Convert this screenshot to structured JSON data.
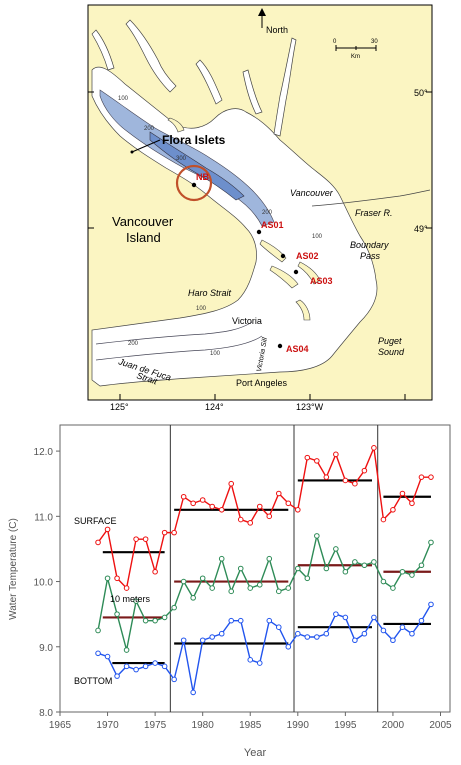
{
  "map": {
    "north_label": "North",
    "scale": {
      "zero": "0",
      "max": "30",
      "unit": "Km"
    },
    "lat_labels": [
      "50°",
      "49°"
    ],
    "lon_labels": [
      "125°",
      "124°",
      "123°W"
    ],
    "place_labels": {
      "flora_islets": "Flora Islets",
      "vancouver_island_1": "Vancouver",
      "vancouver_island_2": "Island",
      "vancouver": "Vancouver",
      "fraser": "Fraser R.",
      "boundary_1": "Boundary",
      "boundary_2": "Pass",
      "haro": "Haro Strait",
      "victoria": "Victoria",
      "victoria_sill": "Victoria Sill",
      "juan_1": "Juan de Fuca",
      "juan_2": "Strait",
      "puget_1": "Puget",
      "puget_2": "Sound",
      "port_angeles": "Port Angeles"
    },
    "stations": [
      "NB",
      "AS01",
      "AS02",
      "AS03",
      "AS04"
    ],
    "depth_labels": [
      "100",
      "200",
      "300",
      "200",
      "100",
      "100",
      "200",
      "100"
    ],
    "colors": {
      "land": "#fbf5c2",
      "water": "#ffffff",
      "deep_water": "#9fb6dc",
      "deepest_water": "#6d8fcc",
      "station": "#cc1111",
      "circle": "#c0502a"
    }
  },
  "chart_data": {
    "type": "line",
    "xlabel": "Year",
    "ylabel": "Water Temperature (C)",
    "xlim": [
      1965,
      2006
    ],
    "ylim": [
      8.0,
      12.4
    ],
    "x_ticks": [
      "1965",
      "1970",
      "1975",
      "1980",
      "1985",
      "1990",
      "1995",
      "2000",
      "2005"
    ],
    "y_ticks": [
      "8.0",
      "9.0",
      "10.0",
      "11.0",
      "12.0"
    ],
    "vertical_lines": [
      1976.6,
      1989.6,
      1998.4
    ],
    "grid": false,
    "series": [
      {
        "name": "SURFACE",
        "color": "#ee1111",
        "x": [
          1969,
          1970,
          1971,
          1972,
          1973,
          1974,
          1975,
          1976,
          1977,
          1978,
          1979,
          1980,
          1981,
          1982,
          1983,
          1984,
          1985,
          1986,
          1987,
          1988,
          1989,
          1990,
          1991,
          1992,
          1993,
          1994,
          1995,
          1996,
          1997,
          1998,
          1999,
          2000,
          2001,
          2002,
          2003,
          2004
        ],
        "values": [
          10.6,
          10.8,
          10.05,
          9.9,
          10.65,
          10.65,
          10.15,
          10.75,
          10.75,
          11.3,
          11.2,
          11.25,
          11.15,
          11.1,
          11.5,
          10.95,
          10.9,
          11.15,
          11.0,
          11.35,
          11.2,
          11.1,
          11.9,
          11.85,
          11.6,
          11.95,
          11.55,
          11.5,
          11.7,
          12.05,
          10.95,
          11.1,
          11.35,
          11.2,
          11.6,
          11.6
        ]
      },
      {
        "name": "10 meters",
        "color": "#2e8b57",
        "x": [
          1969,
          1970,
          1971,
          1972,
          1973,
          1974,
          1975,
          1976,
          1977,
          1978,
          1979,
          1980,
          1981,
          1982,
          1983,
          1984,
          1985,
          1986,
          1987,
          1988,
          1989,
          1990,
          1991,
          1992,
          1993,
          1994,
          1995,
          1996,
          1997,
          1998,
          1999,
          2000,
          2001,
          2002,
          2003,
          2004
        ],
        "values": [
          9.25,
          10.05,
          9.5,
          8.95,
          9.7,
          9.4,
          9.4,
          9.45,
          9.6,
          10.0,
          9.75,
          10.05,
          9.9,
          10.35,
          9.85,
          10.2,
          9.9,
          9.95,
          10.35,
          9.85,
          9.9,
          10.2,
          10.05,
          10.7,
          10.2,
          10.5,
          10.15,
          10.3,
          10.25,
          10.3,
          10.0,
          9.9,
          10.15,
          10.1,
          10.25,
          10.6
        ]
      },
      {
        "name": "BOTTOM",
        "color": "#2255ee",
        "x": [
          1969,
          1970,
          1971,
          1972,
          1973,
          1974,
          1975,
          1976,
          1977,
          1978,
          1979,
          1980,
          1981,
          1982,
          1983,
          1984,
          1985,
          1986,
          1987,
          1988,
          1989,
          1990,
          1991,
          1992,
          1993,
          1994,
          1995,
          1996,
          1997,
          1998,
          1999,
          2000,
          2001,
          2002,
          2003,
          2004
        ],
        "values": [
          8.9,
          8.85,
          8.55,
          8.7,
          8.65,
          8.7,
          8.75,
          8.7,
          8.5,
          9.1,
          8.3,
          9.1,
          9.15,
          9.2,
          9.4,
          9.4,
          8.8,
          8.75,
          9.4,
          9.3,
          9.0,
          9.2,
          9.15,
          9.15,
          9.2,
          9.5,
          9.45,
          9.1,
          9.2,
          9.45,
          9.25,
          9.1,
          9.3,
          9.2,
          9.4,
          9.65
        ]
      }
    ],
    "period_means": [
      {
        "series": "SURFACE",
        "color": "#000000",
        "segments": [
          [
            1969.5,
            1976,
            10.45
          ],
          [
            1977,
            1989,
            11.1
          ],
          [
            1990,
            1997.8,
            11.55
          ],
          [
            1999,
            2004,
            11.3
          ]
        ]
      },
      {
        "series": "10 meters",
        "color": "#7a1a1a",
        "segments": [
          [
            1969.5,
            1976,
            9.45
          ],
          [
            1977,
            1989,
            10.0
          ],
          [
            1990,
            1997.8,
            10.25
          ],
          [
            1999,
            2004,
            10.15
          ]
        ]
      },
      {
        "series": "BOTTOM",
        "color": "#000000",
        "segments": [
          [
            1970.5,
            1976,
            8.75
          ],
          [
            1977,
            1989,
            9.05
          ],
          [
            1990,
            1997.8,
            9.3
          ],
          [
            1999,
            2004,
            9.35
          ]
        ]
      }
    ]
  }
}
